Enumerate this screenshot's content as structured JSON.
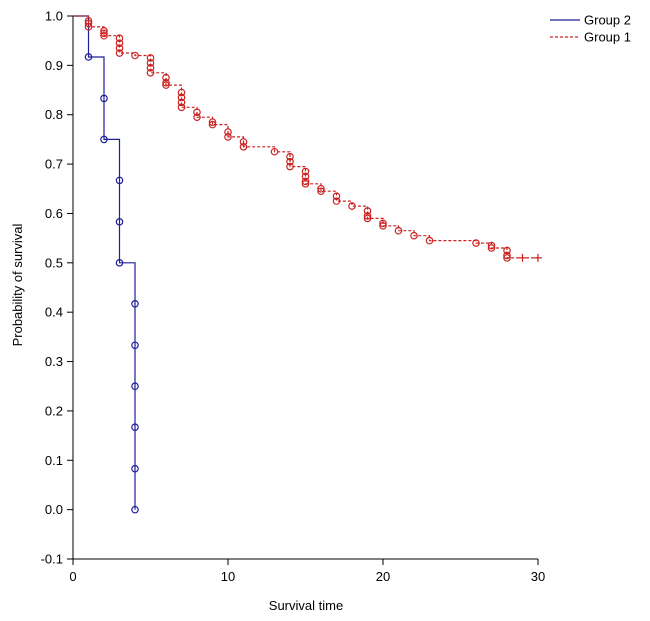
{
  "chart_data": {
    "type": "line",
    "subtype": "kaplan-meier",
    "title": "",
    "xlabel": "Survival time",
    "ylabel": "Probability of survival",
    "xlim": [
      0,
      30
    ],
    "ylim": [
      -0.1,
      1.0
    ],
    "xticks": [
      "0",
      "10",
      "20",
      "30"
    ],
    "xtick_values": [
      0,
      10,
      20,
      30
    ],
    "yticks": [
      "-0.1",
      "0.0",
      "0.1",
      "0.2",
      "0.3",
      "0.4",
      "0.5",
      "0.6",
      "0.7",
      "0.8",
      "0.9",
      "1.0"
    ],
    "ytick_values": [
      -0.1,
      0.0,
      0.1,
      0.2,
      0.3,
      0.4,
      0.5,
      0.6,
      0.7,
      0.8,
      0.9,
      1.0
    ],
    "grid": false,
    "legend": "top-right",
    "series": [
      {
        "name": "Group 2",
        "color": "#1f1f9a",
        "line_style": "solid",
        "x": [
          0,
          1,
          1,
          2,
          2,
          3,
          3,
          4,
          4
        ],
        "y": [
          1.0,
          1.0,
          0.917,
          0.917,
          0.75,
          0.75,
          0.5,
          0.5,
          0.0
        ],
        "events": [
          [
            1,
            0.917
          ],
          [
            2,
            0.833
          ],
          [
            2,
            0.75
          ],
          [
            3,
            0.667
          ],
          [
            3,
            0.583
          ],
          [
            3,
            0.5
          ],
          [
            4,
            0.417
          ],
          [
            4,
            0.333
          ],
          [
            4,
            0.25
          ],
          [
            4,
            0.167
          ],
          [
            4,
            0.083
          ],
          [
            4,
            0.0
          ]
        ],
        "censored": []
      },
      {
        "name": "Group 1",
        "color": "#cc2222",
        "line_style": "dashed",
        "x": [
          0,
          1,
          1,
          2,
          2,
          3,
          3,
          4,
          4,
          5,
          5,
          6,
          6,
          7,
          7,
          8,
          8,
          9,
          9,
          10,
          10,
          11,
          11,
          13,
          13,
          14,
          14,
          15,
          15,
          16,
          16,
          17,
          17,
          18,
          18,
          19,
          19,
          20,
          20,
          21,
          21,
          22,
          22,
          23,
          23,
          26,
          26,
          27,
          27,
          28,
          28,
          30
        ],
        "y": [
          1.0,
          1.0,
          0.978,
          0.978,
          0.96,
          0.96,
          0.925,
          0.925,
          0.92,
          0.92,
          0.885,
          0.885,
          0.86,
          0.86,
          0.815,
          0.815,
          0.795,
          0.795,
          0.78,
          0.78,
          0.755,
          0.755,
          0.735,
          0.735,
          0.725,
          0.725,
          0.695,
          0.695,
          0.66,
          0.66,
          0.645,
          0.645,
          0.625,
          0.625,
          0.615,
          0.615,
          0.59,
          0.59,
          0.575,
          0.575,
          0.565,
          0.565,
          0.555,
          0.555,
          0.545,
          0.545,
          0.54,
          0.54,
          0.53,
          0.53,
          0.51,
          0.51
        ],
        "events": [
          [
            1,
            0.99
          ],
          [
            1,
            0.985
          ],
          [
            1,
            0.978
          ],
          [
            2,
            0.97
          ],
          [
            2,
            0.965
          ],
          [
            2,
            0.96
          ],
          [
            3,
            0.955
          ],
          [
            3,
            0.945
          ],
          [
            3,
            0.935
          ],
          [
            3,
            0.925
          ],
          [
            4,
            0.92
          ],
          [
            5,
            0.915
          ],
          [
            5,
            0.905
          ],
          [
            5,
            0.895
          ],
          [
            5,
            0.885
          ],
          [
            6,
            0.875
          ],
          [
            6,
            0.865
          ],
          [
            6,
            0.86
          ],
          [
            7,
            0.845
          ],
          [
            7,
            0.835
          ],
          [
            7,
            0.825
          ],
          [
            7,
            0.815
          ],
          [
            8,
            0.805
          ],
          [
            8,
            0.795
          ],
          [
            9,
            0.785
          ],
          [
            9,
            0.78
          ],
          [
            10,
            0.765
          ],
          [
            10,
            0.755
          ],
          [
            11,
            0.745
          ],
          [
            11,
            0.735
          ],
          [
            13,
            0.725
          ],
          [
            14,
            0.715
          ],
          [
            14,
            0.705
          ],
          [
            14,
            0.695
          ],
          [
            15,
            0.685
          ],
          [
            15,
            0.675
          ],
          [
            15,
            0.665
          ],
          [
            15,
            0.66
          ],
          [
            16,
            0.65
          ],
          [
            16,
            0.645
          ],
          [
            17,
            0.635
          ],
          [
            17,
            0.625
          ],
          [
            18,
            0.615
          ],
          [
            19,
            0.605
          ],
          [
            19,
            0.595
          ],
          [
            19,
            0.59
          ],
          [
            20,
            0.58
          ],
          [
            20,
            0.575
          ],
          [
            21,
            0.565
          ],
          [
            22,
            0.555
          ],
          [
            23,
            0.545
          ],
          [
            26,
            0.54
          ],
          [
            27,
            0.535
          ],
          [
            27,
            0.53
          ],
          [
            28,
            0.525
          ],
          [
            28,
            0.515
          ],
          [
            28,
            0.51
          ]
        ],
        "censored": [
          [
            29,
            0.51
          ],
          [
            30,
            0.51
          ]
        ]
      }
    ]
  }
}
